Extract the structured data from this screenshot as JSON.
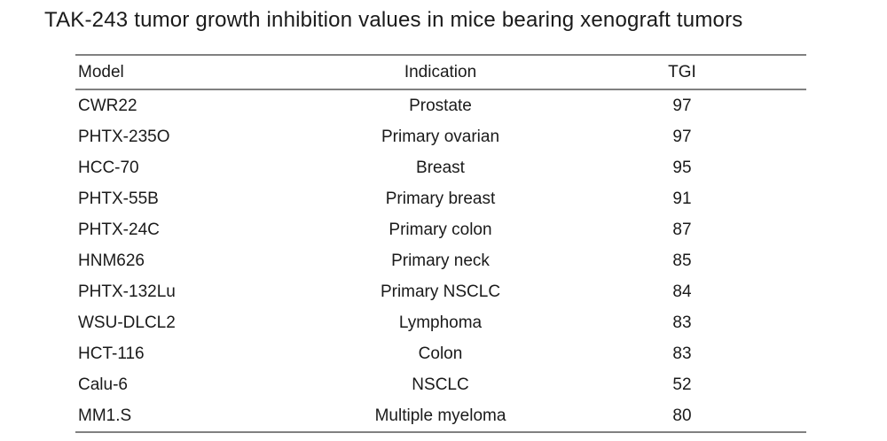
{
  "title": "TAK-243 tumor growth inhibition values in mice bearing xenograft tumors",
  "table": {
    "columns": [
      "Model",
      "Indication",
      "TGI"
    ],
    "rows": [
      {
        "model": "CWR22",
        "indication": "Prostate",
        "tgi": "97"
      },
      {
        "model": "PHTX-235O",
        "indication": "Primary ovarian",
        "tgi": "97"
      },
      {
        "model": "HCC-70",
        "indication": "Breast",
        "tgi": "95"
      },
      {
        "model": "PHTX-55B",
        "indication": "Primary breast",
        "tgi": "91"
      },
      {
        "model": "PHTX-24C",
        "indication": "Primary colon",
        "tgi": "87"
      },
      {
        "model": "HNM626",
        "indication": "Primary neck",
        "tgi": "85"
      },
      {
        "model": "PHTX-132Lu",
        "indication": "Primary NSCLC",
        "tgi": "84"
      },
      {
        "model": "WSU-DLCL2",
        "indication": "Lymphoma",
        "tgi": "83"
      },
      {
        "model": "HCT-116",
        "indication": "Colon",
        "tgi": "83"
      },
      {
        "model": "Calu-6",
        "indication": "NSCLC",
        "tgi": "52"
      },
      {
        "model": "MM1.S",
        "indication": "Multiple myeloma",
        "tgi": "80"
      }
    ]
  },
  "colors": {
    "background": "#ffffff",
    "text": "#1a1a1a",
    "rule_line": "#808080"
  },
  "chart_data": {
    "type": "table",
    "title": "TAK-243 tumor growth inhibition values in mice bearing xenograft tumors",
    "columns": [
      "Model",
      "Indication",
      "TGI"
    ],
    "rows": [
      [
        "CWR22",
        "Prostate",
        97
      ],
      [
        "PHTX-235O",
        "Primary ovarian",
        97
      ],
      [
        "HCC-70",
        "Breast",
        95
      ],
      [
        "PHTX-55B",
        "Primary breast",
        91
      ],
      [
        "PHTX-24C",
        "Primary colon",
        87
      ],
      [
        "HNM626",
        "Primary neck",
        85
      ],
      [
        "PHTX-132Lu",
        "Primary NSCLC",
        84
      ],
      [
        "WSU-DLCL2",
        "Lymphoma",
        83
      ],
      [
        "HCT-116",
        "Colon",
        83
      ],
      [
        "Calu-6",
        "NSCLC",
        52
      ],
      [
        "MM1.S",
        "Multiple myeloma",
        80
      ]
    ]
  }
}
